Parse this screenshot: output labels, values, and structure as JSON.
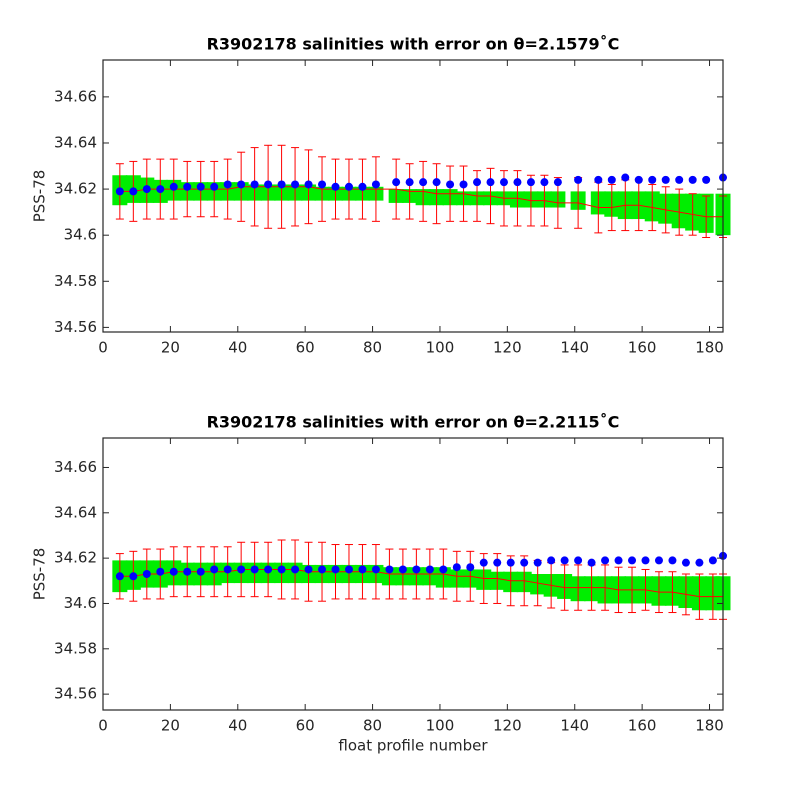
{
  "chart_data": [
    {
      "type": "errorbar",
      "title": "R3902178 salinities with error on θ=2.1579˚C",
      "y_label": "PSS-78",
      "x": [
        5,
        9,
        13,
        17,
        21,
        25,
        29,
        33,
        37,
        41,
        45,
        49,
        53,
        57,
        61,
        65,
        69,
        73,
        77,
        81,
        87,
        91,
        95,
        99,
        103,
        107,
        111,
        115,
        119,
        123,
        127,
        131,
        135,
        141,
        147,
        151,
        155,
        159,
        163,
        167,
        171,
        175,
        179,
        184
      ],
      "float_values": [
        34.619,
        34.619,
        34.62,
        34.62,
        34.621,
        34.621,
        34.621,
        34.621,
        34.622,
        34.622,
        34.622,
        34.622,
        34.622,
        34.622,
        34.622,
        34.622,
        34.621,
        34.621,
        34.621,
        34.622,
        34.623,
        34.623,
        34.623,
        34.623,
        34.622,
        34.622,
        34.623,
        34.623,
        34.623,
        34.623,
        34.623,
        34.623,
        34.623,
        34.624,
        34.624,
        34.624,
        34.625,
        34.624,
        34.624,
        34.624,
        34.624,
        34.624,
        34.624,
        34.625
      ],
      "mapped_values": [
        34.619,
        34.619,
        34.62,
        34.62,
        34.62,
        34.62,
        34.62,
        34.62,
        34.62,
        34.621,
        34.621,
        34.621,
        34.621,
        34.621,
        34.621,
        34.62,
        34.62,
        34.62,
        34.62,
        34.62,
        34.62,
        34.619,
        34.619,
        34.618,
        34.618,
        34.618,
        34.617,
        34.617,
        34.616,
        34.616,
        34.615,
        34.615,
        34.614,
        34.614,
        34.612,
        34.612,
        34.613,
        34.613,
        34.612,
        34.611,
        34.61,
        34.609,
        34.608,
        34.608
      ],
      "mapped_errors": [
        0.012,
        0.013,
        0.013,
        0.013,
        0.013,
        0.012,
        0.012,
        0.012,
        0.013,
        0.015,
        0.017,
        0.018,
        0.018,
        0.017,
        0.016,
        0.014,
        0.013,
        0.013,
        0.013,
        0.014,
        0.013,
        0.012,
        0.013,
        0.013,
        0.012,
        0.012,
        0.011,
        0.012,
        0.012,
        0.012,
        0.011,
        0.011,
        0.011,
        0.011,
        0.011,
        0.01,
        0.011,
        0.011,
        0.01,
        0.01,
        0.01,
        0.009,
        0.009,
        0.009
      ],
      "band_lower": [
        34.613,
        34.614,
        34.614,
        34.614,
        34.615,
        34.615,
        34.615,
        34.615,
        34.615,
        34.615,
        34.615,
        34.615,
        34.615,
        34.615,
        34.615,
        34.615,
        34.615,
        34.615,
        34.615,
        34.615,
        34.614,
        34.614,
        34.613,
        34.613,
        34.613,
        34.613,
        34.613,
        34.613,
        34.613,
        34.612,
        34.612,
        34.612,
        34.612,
        34.611,
        34.609,
        34.608,
        34.607,
        34.607,
        34.606,
        34.605,
        34.603,
        34.602,
        34.601,
        34.6
      ],
      "band_upper": [
        34.626,
        34.626,
        34.625,
        34.624,
        34.624,
        34.623,
        34.623,
        34.623,
        34.623,
        34.623,
        34.622,
        34.622,
        34.622,
        34.622,
        34.622,
        34.621,
        34.621,
        34.621,
        34.621,
        34.621,
        34.62,
        34.62,
        34.62,
        34.62,
        34.62,
        34.619,
        34.619,
        34.619,
        34.619,
        34.619,
        34.619,
        34.619,
        34.619,
        34.619,
        34.619,
        34.619,
        34.619,
        34.619,
        34.619,
        34.618,
        34.618,
        34.618,
        34.618,
        34.618
      ],
      "float_color": "#0000ff",
      "mapped_color": "#ff0000",
      "band_color": "#00ee00",
      "xlim": [
        0,
        184
      ],
      "ylim": [
        34.558,
        34.676
      ],
      "xticks": [
        0,
        20,
        40,
        60,
        80,
        100,
        120,
        140,
        160,
        180
      ],
      "yticks": [
        34.56,
        34.58,
        34.6,
        34.62,
        34.64,
        34.66
      ]
    },
    {
      "type": "errorbar",
      "title": "R3902178 salinities with error on θ=2.2115˚C",
      "y_label": "PSS-78",
      "x_label": "float profile number",
      "x": [
        5,
        9,
        13,
        17,
        21,
        25,
        29,
        33,
        37,
        41,
        45,
        49,
        53,
        57,
        61,
        65,
        69,
        73,
        77,
        81,
        85,
        89,
        93,
        97,
        101,
        105,
        109,
        113,
        117,
        121,
        125,
        129,
        133,
        137,
        141,
        145,
        149,
        153,
        157,
        161,
        165,
        169,
        173,
        177,
        181,
        184
      ],
      "float_values": [
        34.612,
        34.612,
        34.613,
        34.614,
        34.614,
        34.614,
        34.614,
        34.615,
        34.615,
        34.615,
        34.615,
        34.615,
        34.615,
        34.615,
        34.615,
        34.615,
        34.615,
        34.615,
        34.615,
        34.615,
        34.615,
        34.615,
        34.615,
        34.615,
        34.615,
        34.616,
        34.616,
        34.618,
        34.618,
        34.618,
        34.618,
        34.618,
        34.619,
        34.619,
        34.619,
        34.618,
        34.619,
        34.619,
        34.619,
        34.619,
        34.619,
        34.619,
        34.618,
        34.618,
        34.619,
        34.621
      ],
      "mapped_values": [
        34.612,
        34.612,
        34.613,
        34.613,
        34.614,
        34.614,
        34.614,
        34.614,
        34.614,
        34.615,
        34.615,
        34.615,
        34.615,
        34.615,
        34.614,
        34.614,
        34.614,
        34.614,
        34.614,
        34.614,
        34.613,
        34.613,
        34.613,
        34.613,
        34.613,
        34.612,
        34.612,
        34.611,
        34.611,
        34.61,
        34.61,
        34.609,
        34.608,
        34.607,
        34.607,
        34.607,
        34.607,
        34.606,
        34.606,
        34.606,
        34.605,
        34.605,
        34.604,
        34.603,
        34.603,
        34.603
      ],
      "mapped_errors": [
        0.01,
        0.011,
        0.011,
        0.011,
        0.011,
        0.011,
        0.011,
        0.011,
        0.011,
        0.012,
        0.012,
        0.012,
        0.013,
        0.013,
        0.013,
        0.013,
        0.012,
        0.012,
        0.012,
        0.012,
        0.011,
        0.011,
        0.011,
        0.011,
        0.011,
        0.011,
        0.011,
        0.011,
        0.011,
        0.011,
        0.011,
        0.01,
        0.01,
        0.01,
        0.01,
        0.01,
        0.01,
        0.01,
        0.01,
        0.009,
        0.009,
        0.009,
        0.009,
        0.01,
        0.01,
        0.01
      ],
      "band_lower": [
        34.605,
        34.606,
        34.607,
        34.607,
        34.608,
        34.608,
        34.608,
        34.608,
        34.609,
        34.609,
        34.609,
        34.609,
        34.609,
        34.609,
        34.609,
        34.609,
        34.609,
        34.609,
        34.609,
        34.609,
        34.608,
        34.608,
        34.608,
        34.608,
        34.607,
        34.607,
        34.607,
        34.606,
        34.606,
        34.605,
        34.605,
        34.604,
        34.603,
        34.602,
        34.601,
        34.601,
        34.6,
        34.6,
        34.6,
        34.6,
        34.599,
        34.599,
        34.598,
        34.597,
        34.597,
        34.597
      ],
      "band_upper": [
        34.619,
        34.619,
        34.619,
        34.619,
        34.619,
        34.618,
        34.618,
        34.618,
        34.618,
        34.618,
        34.618,
        34.618,
        34.618,
        34.618,
        34.617,
        34.617,
        34.617,
        34.617,
        34.617,
        34.617,
        34.616,
        34.616,
        34.616,
        34.616,
        34.616,
        34.615,
        34.615,
        34.615,
        34.614,
        34.614,
        34.614,
        34.613,
        34.613,
        34.613,
        34.612,
        34.612,
        34.612,
        34.612,
        34.612,
        34.612,
        34.612,
        34.612,
        34.612,
        34.612,
        34.612,
        34.612
      ],
      "float_color": "#0000ff",
      "mapped_color": "#ff0000",
      "band_color": "#00ee00",
      "xlim": [
        0,
        184
      ],
      "ylim": [
        34.553,
        34.673
      ],
      "xticks": [
        0,
        20,
        40,
        60,
        80,
        100,
        120,
        140,
        160,
        180
      ],
      "yticks": [
        34.56,
        34.58,
        34.6,
        34.62,
        34.64,
        34.66
      ]
    }
  ]
}
